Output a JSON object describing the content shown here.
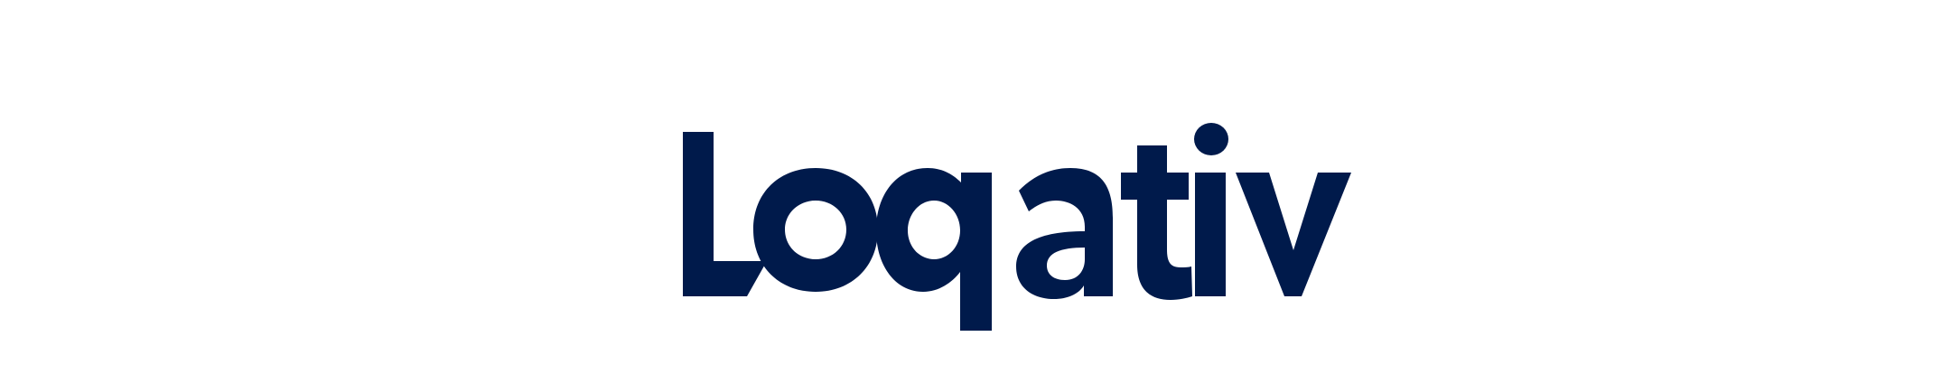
{
  "brand": {
    "name": "Loqativ",
    "logo_icon": "wordmark-logo",
    "color": "#001a4b",
    "background": "#ffffff"
  }
}
